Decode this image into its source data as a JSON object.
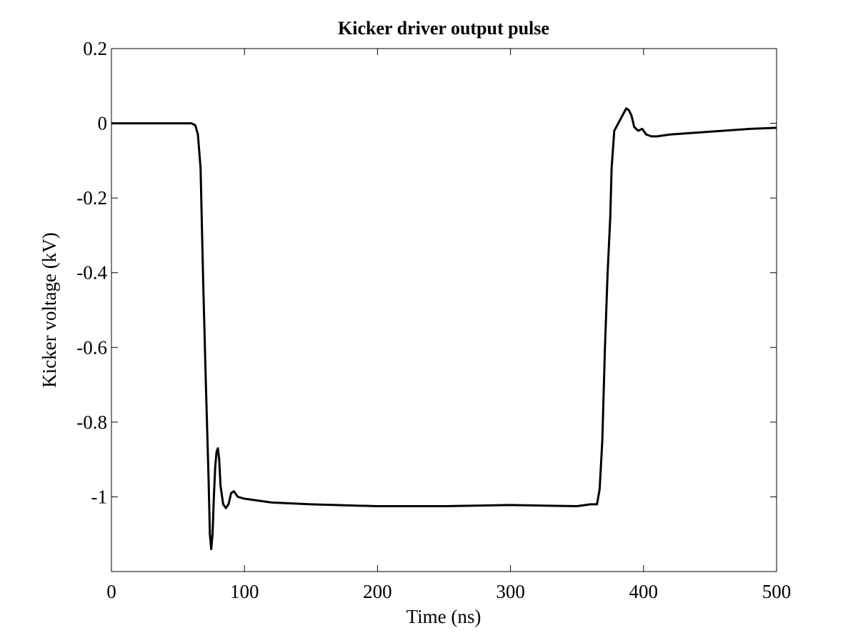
{
  "chart_data": {
    "type": "line",
    "title": "Kicker driver output pulse",
    "x_label": "Time (ns)",
    "y_label": "Kicker voltage (kV)",
    "xlim": [
      0,
      500
    ],
    "ylim": [
      -1.2,
      0.2
    ],
    "xticks": [
      0,
      100,
      200,
      300,
      400,
      500
    ],
    "yticks": [
      0.2,
      0,
      -0.2,
      -0.4,
      -0.6,
      -0.8,
      -1
    ],
    "grid": false,
    "series": [
      {
        "name": "Kicker voltage",
        "color": "#000000",
        "x": [
          0,
          10,
          20,
          30,
          40,
          50,
          60,
          63,
          65,
          67,
          69,
          71,
          73,
          74,
          75,
          76,
          77,
          78,
          79,
          80,
          81,
          82,
          84,
          86,
          88,
          90,
          92,
          95,
          100,
          110,
          120,
          150,
          200,
          250,
          300,
          350,
          360,
          365,
          367,
          369,
          371,
          373,
          375,
          376,
          378,
          381,
          384,
          387,
          389,
          391,
          393,
          396,
          399,
          402,
          406,
          410,
          420,
          440,
          460,
          480,
          500
        ],
        "values": [
          0.0,
          0.0,
          0.0,
          0.0,
          0.0,
          0.0,
          0.0,
          -0.005,
          -0.03,
          -0.12,
          -0.43,
          -0.7,
          -0.95,
          -1.1,
          -1.14,
          -1.1,
          -1.0,
          -0.92,
          -0.88,
          -0.87,
          -0.9,
          -0.97,
          -1.02,
          -1.03,
          -1.02,
          -0.99,
          -0.985,
          -1.0,
          -1.005,
          -1.01,
          -1.015,
          -1.02,
          -1.025,
          -1.025,
          -1.022,
          -1.025,
          -1.02,
          -1.02,
          -0.98,
          -0.85,
          -0.6,
          -0.4,
          -0.25,
          -0.12,
          -0.02,
          0.0,
          0.02,
          0.04,
          0.035,
          0.02,
          -0.01,
          -0.02,
          -0.015,
          -0.03,
          -0.035,
          -0.035,
          -0.03,
          -0.025,
          -0.02,
          -0.015,
          -0.012
        ]
      }
    ]
  }
}
